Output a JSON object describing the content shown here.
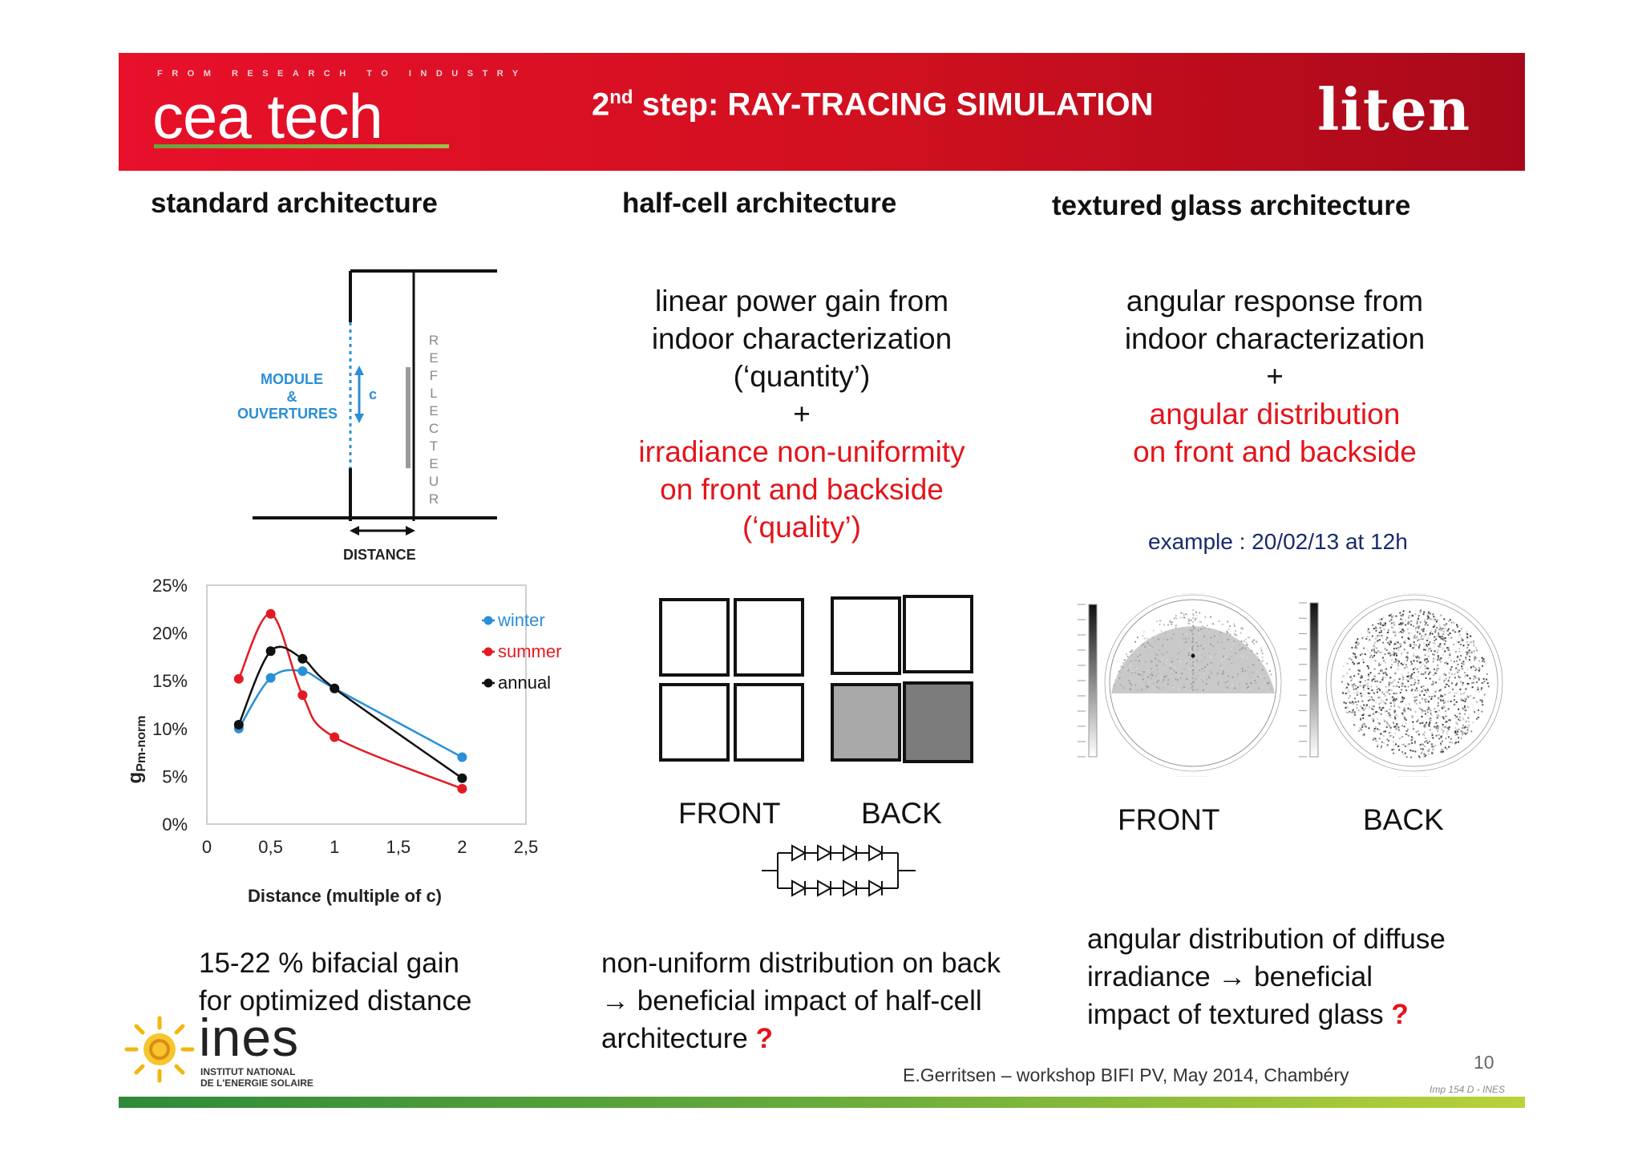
{
  "header": {
    "tagline": "FROM RESEARCH TO INDUSTRY",
    "logo_left": "cea tech",
    "title_prefix": "2",
    "title_sup": "nd",
    "title_rest": " step: RAY-TRACING SIMULATION",
    "logo_right": "liten",
    "colors": {
      "banner": "#e8102a",
      "text": "#ffffff"
    }
  },
  "columns": {
    "standard": {
      "heading": "standard architecture",
      "diagram": {
        "module_label_1": "MODULE",
        "module_label_2": "&",
        "module_label_3": "OUVERTURES",
        "c_label": "c",
        "reflector_letters": [
          "R",
          "E",
          "F",
          "L",
          "E",
          "C",
          "T",
          "E",
          "U",
          "R"
        ],
        "distance_label": "DISTANCE"
      },
      "conclusion_line1": "15-22 % bifacial gain",
      "conclusion_line2": "for optimized distance"
    },
    "half_cell": {
      "heading": "half-cell architecture",
      "text_lines": [
        "linear power gain from",
        "indoor characterization",
        "(‘quantity’)",
        "+"
      ],
      "red_lines": [
        "irradiance non-uniformity",
        "on front and backside",
        "(‘quality’)"
      ],
      "front_label": "FRONT",
      "back_label": "BACK",
      "back_cell_colors": [
        "#ffffff",
        "#ffffff",
        "#a9a9a9",
        "#7c7c7c"
      ],
      "conclusion_line1": "non-uniform distribution on back",
      "conclusion_line2": "→ beneficial impact of half-cell",
      "conclusion_line3": "architecture ",
      "conclusion_q": "?"
    },
    "textured": {
      "heading": "textured glass architecture",
      "text_lines": [
        "angular response from",
        "indoor characterization",
        "+"
      ],
      "red_lines": [
        "angular distribution",
        "on front and backside"
      ],
      "example": "example : 20/02/13 at 12h",
      "front_label": "FRONT",
      "back_label": "BACK",
      "conclusion_line1": "angular distribution of diffuse",
      "conclusion_line2": " irradiance → beneficial",
      "conclusion_line3": "impact of textured glass ",
      "conclusion_q": "?"
    }
  },
  "chart_data": {
    "type": "line",
    "xlabel": "Distance (multiple of c)",
    "ylabel": "gPm-norm",
    "ylabel_main": "g",
    "ylabel_sub": "Pm-norm",
    "xlim": [
      0,
      2.5
    ],
    "ylim": [
      0,
      25
    ],
    "x_ticks": [
      "0",
      "0,5",
      "1",
      "1,5",
      "2",
      "2,5"
    ],
    "y_ticks": [
      "0%",
      "5%",
      "10%",
      "15%",
      "20%",
      "25%"
    ],
    "legend_position": "top-right",
    "series": [
      {
        "name": "winter",
        "color": "#2a8fd6",
        "x": [
          0.25,
          0.5,
          0.75,
          1,
          2
        ],
        "y": [
          10,
          15.3,
          16,
          14.2,
          7
        ]
      },
      {
        "name": "summer",
        "color": "#e21b23",
        "x": [
          0.25,
          0.5,
          0.75,
          1,
          2
        ],
        "y": [
          15.2,
          22,
          13.5,
          9.1,
          3.7
        ]
      },
      {
        "name": "annual",
        "color": "#111111",
        "x": [
          0.25,
          0.5,
          0.75,
          1,
          2
        ],
        "y": [
          10.4,
          18.1,
          17.3,
          14.2,
          4.8
        ]
      }
    ]
  },
  "footer": {
    "credit": "E.Gerritsen – workshop BIFI PV, May 2014, Chambéry",
    "page_number": "10",
    "code": "Imp 154 D - INES",
    "logo_name": "ines",
    "logo_sub1": "INSTITUT NATIONAL",
    "logo_sub2": "DE L'ENERGIE SOLAIRE"
  }
}
